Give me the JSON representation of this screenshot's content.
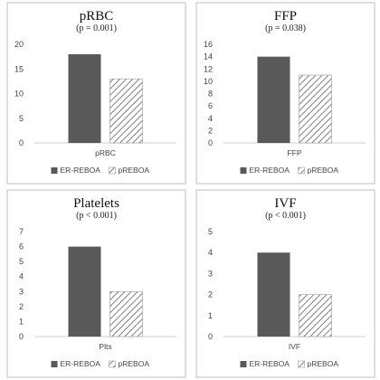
{
  "chart_data": [
    {
      "type": "bar",
      "title": "pRBC",
      "subtitle": "(p = 0.001)",
      "categories": [
        "pRBC"
      ],
      "series": [
        {
          "name": "ER-REBOA",
          "values": [
            18
          ]
        },
        {
          "name": "pREBOA",
          "values": [
            13
          ]
        }
      ],
      "ylim": [
        0,
        20
      ],
      "yticks": [
        0,
        5,
        10,
        15,
        20
      ],
      "legend": "bottom",
      "grid": false
    },
    {
      "type": "bar",
      "title": "FFP",
      "subtitle": "(p = 0.038)",
      "categories": [
        "FFP"
      ],
      "series": [
        {
          "name": "ER-REBOA",
          "values": [
            14
          ]
        },
        {
          "name": "pREBOA",
          "values": [
            11
          ]
        }
      ],
      "ylim": [
        0,
        16
      ],
      "yticks": [
        0,
        2,
        4,
        6,
        8,
        10,
        12,
        14,
        16
      ],
      "legend": "bottom",
      "grid": false
    },
    {
      "type": "bar",
      "title": "Platelets",
      "subtitle": "(p < 0.001)",
      "categories": [
        "Plts"
      ],
      "series": [
        {
          "name": "ER-REBOA",
          "values": [
            6
          ]
        },
        {
          "name": "pREBOA",
          "values": [
            3
          ]
        }
      ],
      "ylim": [
        0,
        7
      ],
      "yticks": [
        0,
        1,
        2,
        3,
        4,
        5,
        6,
        7
      ],
      "legend": "bottom",
      "grid": false
    },
    {
      "type": "bar",
      "title": "IVF",
      "subtitle": "(p < 0.001)",
      "categories": [
        "IVF"
      ],
      "series": [
        {
          "name": "ER-REBOA",
          "values": [
            4
          ]
        },
        {
          "name": "pREBOA",
          "values": [
            2
          ]
        }
      ],
      "ylim": [
        0,
        5
      ],
      "yticks": [
        0,
        1,
        2,
        3,
        4,
        5
      ],
      "legend": "bottom",
      "grid": false
    }
  ],
  "colors": {
    "er_reboa": "#595959",
    "preboa_stripe": "#7f7f7f",
    "panel_border": "#bfbfbf"
  }
}
